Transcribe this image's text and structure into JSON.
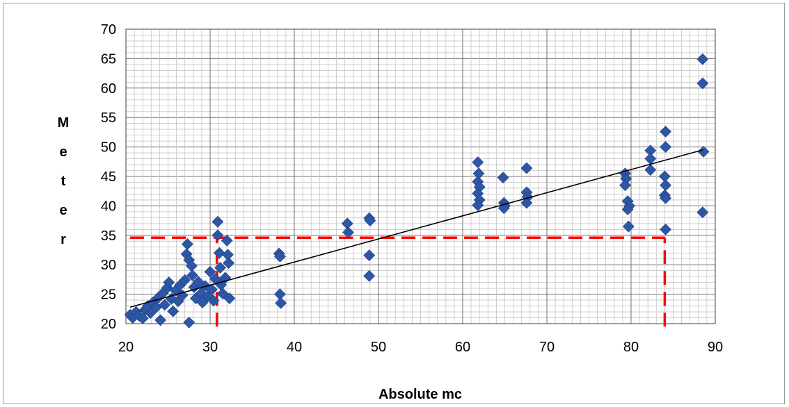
{
  "chart_data": {
    "type": "scatter",
    "title": "",
    "xlabel": "Absolute mc",
    "ylabel": "Meter",
    "xlim": [
      20,
      90
    ],
    "ylim": [
      20,
      70
    ],
    "x_ticks": [
      20,
      30,
      40,
      50,
      60,
      70,
      80,
      90
    ],
    "y_ticks": [
      20,
      25,
      30,
      35,
      40,
      45,
      50,
      55,
      60,
      65,
      70
    ],
    "grid": "major and minor",
    "legend": "none",
    "marker_color": "#2E56A6",
    "trendline": {
      "color": "#000000",
      "x": [
        20.5,
        88.5
      ],
      "y": [
        22.8,
        49.5
      ]
    },
    "reference_lines": [
      {
        "orientation": "horizontal",
        "y": 34.6,
        "x_range": [
          20.5,
          84.0
        ],
        "color": "#FF0000"
      },
      {
        "orientation": "vertical",
        "x": 30.8,
        "y_range": [
          19.5,
          34.6
        ],
        "color": "#FF0000"
      },
      {
        "orientation": "vertical",
        "x": 84.0,
        "y_range": [
          19.5,
          34.6
        ],
        "color": "#FF0000"
      }
    ],
    "series": [
      {
        "points": [
          [
            20.5,
            21.5
          ],
          [
            20.8,
            21.0
          ],
          [
            21.2,
            22.0
          ],
          [
            21.6,
            21.3
          ],
          [
            22.0,
            20.9
          ],
          [
            22.3,
            22.4
          ],
          [
            22.6,
            23.0
          ],
          [
            22.9,
            21.8
          ],
          [
            23.2,
            23.6
          ],
          [
            23.6,
            22.8
          ],
          [
            23.9,
            24.5
          ],
          [
            24.1,
            20.6
          ],
          [
            24.4,
            25.2
          ],
          [
            24.6,
            23.2
          ],
          [
            24.9,
            26.1
          ],
          [
            25.1,
            27.0
          ],
          [
            25.4,
            24.2
          ],
          [
            25.6,
            22.1
          ],
          [
            25.9,
            25.6
          ],
          [
            26.2,
            23.8
          ],
          [
            26.4,
            26.5
          ],
          [
            26.7,
            24.8
          ],
          [
            27.0,
            27.4
          ],
          [
            27.2,
            31.8
          ],
          [
            27.3,
            33.5
          ],
          [
            27.5,
            30.8
          ],
          [
            27.5,
            20.2
          ],
          [
            27.8,
            29.8
          ],
          [
            27.9,
            28.2
          ],
          [
            28.1,
            26.2
          ],
          [
            28.3,
            24.3
          ],
          [
            28.6,
            27.1
          ],
          [
            28.9,
            25.1
          ],
          [
            29.1,
            23.6
          ],
          [
            29.4,
            26.4
          ],
          [
            29.7,
            24.7
          ],
          [
            30.0,
            28.8
          ],
          [
            30.2,
            25.8
          ],
          [
            30.4,
            23.9
          ],
          [
            30.6,
            27.6
          ],
          [
            30.9,
            37.3
          ],
          [
            30.9,
            35.0
          ],
          [
            31.1,
            32.0
          ],
          [
            31.2,
            29.5
          ],
          [
            31.3,
            26.6
          ],
          [
            31.5,
            25.1
          ],
          [
            31.8,
            27.8
          ],
          [
            32.0,
            34.1
          ],
          [
            32.1,
            31.7
          ],
          [
            32.2,
            30.3
          ],
          [
            32.3,
            24.3
          ],
          [
            38.2,
            31.9
          ],
          [
            38.3,
            31.4
          ],
          [
            38.3,
            25.0
          ],
          [
            38.4,
            23.5
          ],
          [
            46.3,
            37.0
          ],
          [
            46.4,
            35.5
          ],
          [
            48.9,
            37.9
          ],
          [
            49.0,
            37.5
          ],
          [
            48.9,
            31.6
          ],
          [
            48.9,
            28.1
          ],
          [
            61.8,
            47.4
          ],
          [
            61.9,
            45.5
          ],
          [
            61.8,
            44.1
          ],
          [
            62.0,
            43.2
          ],
          [
            61.8,
            42.1
          ],
          [
            62.0,
            41.0
          ],
          [
            61.8,
            40.1
          ],
          [
            64.8,
            44.8
          ],
          [
            64.9,
            40.5
          ],
          [
            65.0,
            40.0
          ],
          [
            64.9,
            39.6
          ],
          [
            67.6,
            46.4
          ],
          [
            67.6,
            42.3
          ],
          [
            67.7,
            41.5
          ],
          [
            67.6,
            40.5
          ],
          [
            79.3,
            45.5
          ],
          [
            79.4,
            44.6
          ],
          [
            79.3,
            43.5
          ],
          [
            79.6,
            40.8
          ],
          [
            79.8,
            40.0
          ],
          [
            79.6,
            39.4
          ],
          [
            79.7,
            36.5
          ],
          [
            82.3,
            49.4
          ],
          [
            82.3,
            48.0
          ],
          [
            82.3,
            46.1
          ],
          [
            84.1,
            52.6
          ],
          [
            84.1,
            50.0
          ],
          [
            84.0,
            45.0
          ],
          [
            84.1,
            43.5
          ],
          [
            84.0,
            41.8
          ],
          [
            84.1,
            41.3
          ],
          [
            84.1,
            36.0
          ],
          [
            88.5,
            64.9
          ],
          [
            88.5,
            60.8
          ],
          [
            88.6,
            49.2
          ],
          [
            88.5,
            38.9
          ]
        ]
      }
    ]
  }
}
